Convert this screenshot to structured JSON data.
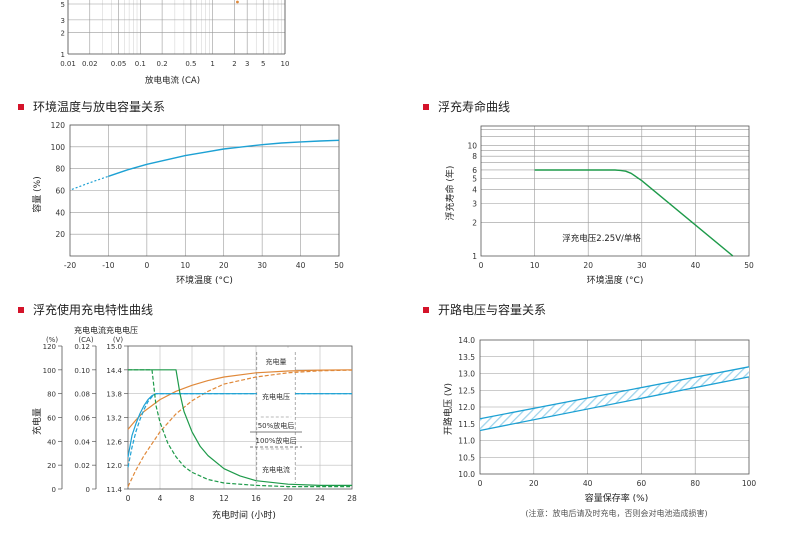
{
  "page": {
    "accent_color": "#d4132a"
  },
  "sections": {
    "capacity_temp": "环境温度与放电容量关系",
    "float_life": "浮充寿命曲线",
    "charge": "浮充使用充电特性曲线",
    "ocv": "开路电压与容量关系"
  },
  "chart_data": [
    {
      "id": "discharge_rate",
      "type": "line",
      "xscale": "log",
      "xlim": [
        0.01,
        10
      ],
      "ylim": [
        1,
        5
      ],
      "xlabel": "放电电流 (CA)",
      "ylabel": "",
      "xticks": [
        "0.01",
        "0.02",
        "0.05",
        "0.1",
        "0.2",
        "0.5",
        "1",
        "2",
        "3",
        "5",
        "10"
      ],
      "xtick_values": [
        0.01,
        0.02,
        0.05,
        0.1,
        0.2,
        0.5,
        1,
        2,
        3,
        5,
        10
      ],
      "yticks": [
        "1",
        "2",
        "3",
        "5"
      ],
      "ytick_values": [
        1,
        2,
        3,
        5
      ],
      "grid": true
    },
    {
      "id": "capacity_temp",
      "type": "line",
      "xlabel": "环境温度 (°C)",
      "ylabel": "容量 (%)",
      "xlim": [
        -20,
        50
      ],
      "ylim": [
        0,
        120
      ],
      "xticks": [
        "-20",
        "-10",
        "0",
        "10",
        "20",
        "30",
        "40",
        "50"
      ],
      "yticks": [
        "20",
        "40",
        "60",
        "80",
        "100",
        "120"
      ],
      "grid": true,
      "series": [
        {
          "color": "#1da1d4",
          "x": [
            -19.5,
            -15,
            -10,
            -5,
            0,
            5,
            10,
            15,
            20,
            25,
            30,
            35,
            40,
            45,
            50
          ],
          "y": [
            61,
            67,
            73,
            79,
            84,
            88,
            92,
            95,
            98,
            100,
            102,
            103.5,
            104.5,
            105.3,
            106
          ]
        }
      ]
    },
    {
      "id": "float_life",
      "type": "line",
      "yscale": "log",
      "xlabel": "环境温度 (°C)",
      "ylabel": "浮充寿命 (年)",
      "xlim": [
        0,
        50
      ],
      "ylim": [
        1,
        15
      ],
      "xticks": [
        "0",
        "10",
        "20",
        "30",
        "40",
        "50"
      ],
      "yticks": [
        "1",
        "2",
        "3",
        "4",
        "5",
        "6",
        "8",
        "10"
      ],
      "ytick_values": [
        1,
        2,
        3,
        4,
        5,
        6,
        8,
        10
      ],
      "grid": true,
      "annotation": "浮充电压2.25V/单格",
      "series": [
        {
          "color": "#1e9a4a",
          "x": [
            10,
            25,
            26,
            27,
            28,
            29,
            30,
            47
          ],
          "y": [
            6,
            6,
            5.95,
            5.85,
            5.6,
            5.2,
            4.8,
            1
          ]
        }
      ]
    },
    {
      "id": "charge",
      "type": "line",
      "xlabel": "充电时间 (小时)",
      "ylabel": "充电量",
      "xlim": [
        0,
        28
      ],
      "xticks": [
        "0",
        "4",
        "8",
        "12",
        "16",
        "20",
        "24",
        "28"
      ],
      "axes": [
        {
          "header": "",
          "unit": "(%)",
          "ticks": [
            "120",
            "100",
            "80",
            "60",
            "40",
            "20",
            "0"
          ]
        },
        {
          "header": "充电电流",
          "unit": "(CA)",
          "ticks": [
            "0.12",
            "0.10",
            "0.08",
            "0.06",
            "0.04",
            "0.02",
            "0"
          ]
        },
        {
          "header": "充电电压",
          "unit": "(V)",
          "ticks": [
            "15.0",
            "14.4",
            "13.8",
            "13.2",
            "12.6",
            "12.0",
            "11.4"
          ]
        }
      ],
      "legend_labels": {
        "charge": "充电量",
        "voltage": "充电电压",
        "d50": "50%放电后",
        "d100": "100%放电后",
        "current": "充电电流"
      },
      "series": {
        "charge_50": {
          "color": "#e0893a",
          "dash": false,
          "x": [
            0,
            1,
            2,
            4,
            6,
            8,
            10,
            12,
            16,
            20,
            24,
            28
          ],
          "y": [
            50,
            58,
            65,
            75,
            82,
            87,
            91,
            94,
            97.5,
            99,
            99.8,
            100
          ]
        },
        "charge_100": {
          "color": "#e0893a",
          "dash": true,
          "x": [
            0,
            1,
            2,
            4,
            6,
            8,
            10,
            12,
            16,
            20,
            24,
            28
          ],
          "y": [
            2,
            16,
            28,
            48,
            63,
            74,
            82,
            88,
            94,
            97.5,
            99.2,
            99.8
          ]
        },
        "voltage_50": {
          "color": "#1da1d4",
          "dash": false,
          "x": [
            0,
            0.5,
            1,
            1.5,
            2,
            2.5,
            3,
            3.5,
            4,
            28
          ],
          "y": [
            12.2,
            12.75,
            13.05,
            13.3,
            13.5,
            13.65,
            13.75,
            13.8,
            13.8,
            13.8
          ]
        },
        "voltage_100": {
          "color": "#1da1d4",
          "dash": true,
          "x": [
            0,
            0.5,
            1,
            1.5,
            2,
            2.5,
            3,
            3.5,
            4,
            28
          ],
          "y": [
            11.95,
            12.45,
            12.85,
            13.15,
            13.4,
            13.6,
            13.72,
            13.8,
            13.8,
            13.8
          ]
        },
        "current_50": {
          "color": "#1e9a4a",
          "dash": false,
          "x": [
            0,
            6,
            6.5,
            7,
            8,
            9,
            10,
            12,
            14,
            16,
            20,
            24,
            28
          ],
          "y": [
            0.1,
            0.1,
            0.08,
            0.065,
            0.048,
            0.036,
            0.028,
            0.017,
            0.011,
            0.007,
            0.004,
            0.003,
            0.003
          ]
        },
        "current_100": {
          "color": "#1e9a4a",
          "dash": true,
          "x": [
            0,
            3,
            3.5,
            4,
            5,
            6,
            7,
            8,
            10,
            12,
            16,
            20,
            28
          ],
          "y": [
            0.1,
            0.1,
            0.07,
            0.056,
            0.038,
            0.027,
            0.019,
            0.014,
            0.008,
            0.005,
            0.003,
            0.002,
            0.002
          ]
        }
      }
    },
    {
      "id": "ocv",
      "type": "area",
      "xlabel": "容量保存率 (%)",
      "ylabel": "开路电压 (V)",
      "xlim": [
        0,
        100
      ],
      "ylim": [
        10.0,
        14.0
      ],
      "xticks": [
        "0",
        "20",
        "40",
        "60",
        "80",
        "100"
      ],
      "yticks": [
        "10.0",
        "10.5",
        "11.0",
        "11.5",
        "12.0",
        "12.5",
        "13.0",
        "13.5",
        "14.0"
      ],
      "grid": true,
      "band_color": "#1da1d4",
      "upper": {
        "x": [
          0,
          100
        ],
        "y": [
          11.65,
          13.2
        ]
      },
      "lower": {
        "x": [
          0,
          100
        ],
        "y": [
          11.3,
          12.9
        ]
      },
      "note": "(注意：放电后请及时充电，否则会对电池造成损害)"
    }
  ]
}
